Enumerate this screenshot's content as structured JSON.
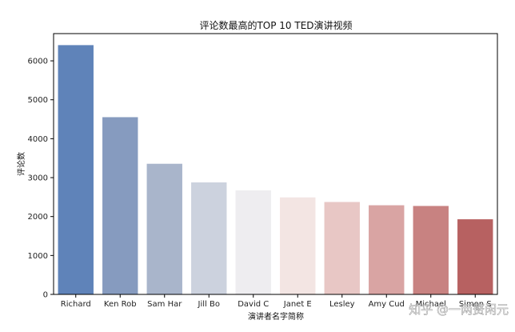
{
  "chart_data": {
    "type": "bar",
    "title": "评论数最高的TOP 10 TED演讲视频",
    "xlabel": "演讲者名字简称",
    "ylabel": "评论数",
    "categories": [
      "Richard",
      "Ken Rob",
      "Sam Har",
      "Jill Bo",
      "David C",
      "Janet E",
      "Lesley",
      "Amy Cud",
      "Michael",
      "Simon S"
    ],
    "values": [
      6404,
      4553,
      3356,
      2877,
      2673,
      2492,
      2374,
      2290,
      2272,
      1930
    ],
    "yticks": [
      0,
      1000,
      2000,
      3000,
      4000,
      5000,
      6000
    ],
    "ylim": [
      0,
      6700
    ],
    "grid": false,
    "colors": [
      "#5f83b9",
      "#869bbf",
      "#a9b5cb",
      "#ccd2de",
      "#eeedf0",
      "#f3e5e3",
      "#e8c7c5",
      "#d9a4a3",
      "#c88281",
      "#b76161"
    ]
  },
  "watermark": "知乎 @一两赘闲元"
}
